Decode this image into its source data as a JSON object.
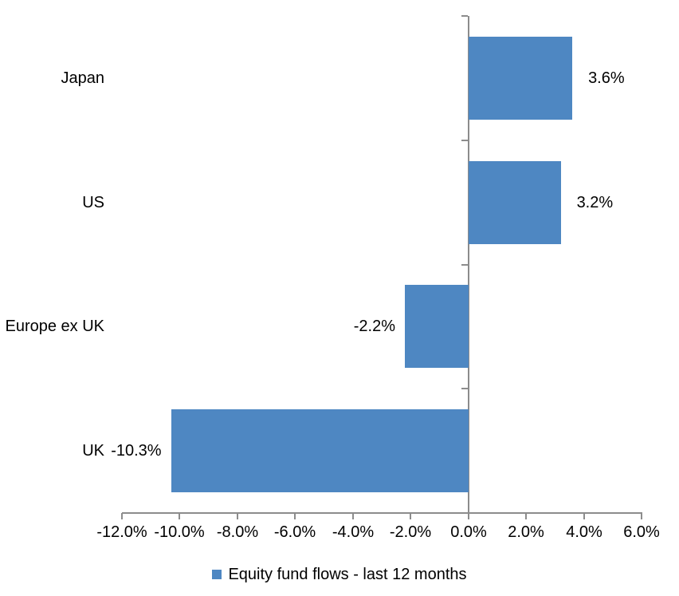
{
  "chart_data": {
    "type": "bar",
    "orientation": "horizontal",
    "title": "",
    "categories": [
      "Japan",
      "US",
      "Europe ex UK",
      "UK"
    ],
    "values": [
      3.6,
      3.2,
      -2.2,
      -10.3
    ],
    "value_labels": [
      "3.6%",
      "3.2%",
      "-2.2%",
      "-10.3%"
    ],
    "x_tick_values": [
      -12,
      -10,
      -8,
      -6,
      -4,
      -2,
      0,
      2,
      4,
      6
    ],
    "x_ticks": [
      "-12.0%",
      "-10.0%",
      "-8.0%",
      "-6.0%",
      "-4.0%",
      "-2.0%",
      "0.0%",
      "2.0%",
      "4.0%",
      "6.0%"
    ],
    "xlim": [
      -12,
      6
    ],
    "grid": false,
    "legend_position": "bottom",
    "legend_label": "Equity fund flows - last 12 months",
    "bar_color": "#4E87C2",
    "axis_color": "#8C8C8C",
    "text_color": "#000000"
  }
}
